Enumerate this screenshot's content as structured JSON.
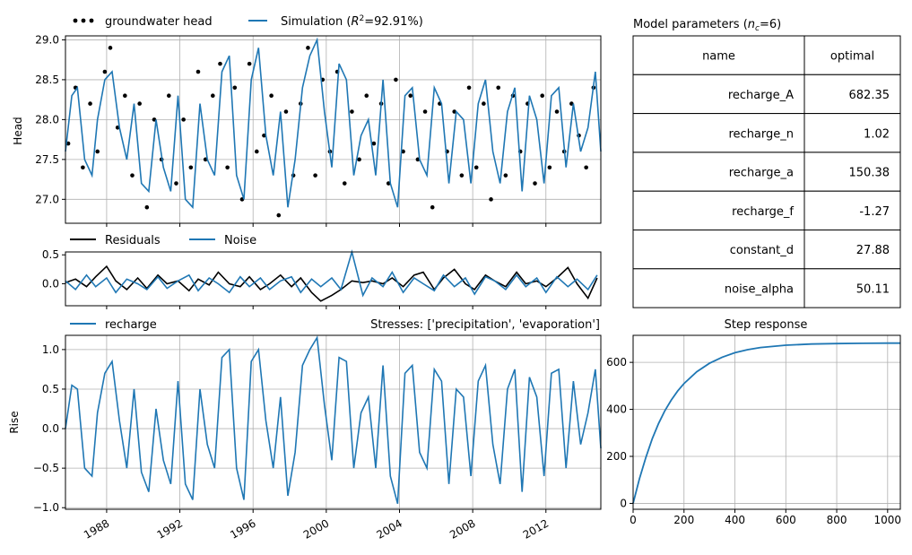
{
  "figure": {
    "head_panel": {
      "legend": {
        "observed_label": "groundwater head",
        "simulated_prefix": "Simulation (",
        "simulated_r2": "R",
        "simulated_sup": "2",
        "simulated_suffix": "=92.91%)"
      },
      "ylabel": "Head"
    },
    "residual_panel": {
      "legend": {
        "residuals_label": "Residuals",
        "noise_label": "Noise"
      }
    },
    "recharge_panel": {
      "legend": {
        "recharge_label": "recharge"
      },
      "stresses_title": "Stresses: ['precipitation', 'evaporation']",
      "ylabel": "Rise"
    },
    "parameter_table": {
      "title_prefix": "Model parameters (",
      "title_n": "n",
      "title_sub": "c",
      "title_suffix": "=6)",
      "columns": [
        "name",
        "optimal"
      ],
      "rows": [
        {
          "name": "recharge_A",
          "optimal": "682.35"
        },
        {
          "name": "recharge_n",
          "optimal": "1.02"
        },
        {
          "name": "recharge_a",
          "optimal": "150.38"
        },
        {
          "name": "recharge_f",
          "optimal": "-1.27"
        },
        {
          "name": "constant_d",
          "optimal": "27.88"
        },
        {
          "name": "noise_alpha",
          "optimal": "50.11"
        }
      ]
    },
    "step_panel": {
      "title": "Step response"
    }
  },
  "colors": {
    "simulation": "#1f77b4",
    "observed": "#000000",
    "grid": "#b0b0b0"
  },
  "chart_data": [
    {
      "id": "head",
      "type": "line",
      "xlim": [
        1985.75,
        2015.0
      ],
      "ylim": [
        26.7,
        29.05
      ],
      "yticks": [
        27.0,
        27.5,
        28.0,
        28.5,
        29.0
      ],
      "ytick_labels": [
        "27.0",
        "27.5",
        "28.0",
        "28.5",
        "29.0"
      ],
      "xticks": [
        1988,
        1992,
        1996,
        2000,
        2004,
        2008,
        2012
      ],
      "grid": true,
      "series": [
        {
          "name": "groundwater head",
          "style": "scatter",
          "color": "#000000",
          "x": [
            1985.9,
            1986.3,
            1986.7,
            1987.1,
            1987.5,
            1987.9,
            1988.2,
            1988.6,
            1989.0,
            1989.4,
            1989.8,
            1990.2,
            1990.6,
            1991.0,
            1991.4,
            1991.8,
            1992.2,
            1992.6,
            1993.0,
            1993.4,
            1993.8,
            1994.2,
            1994.6,
            1995.0,
            1995.4,
            1995.8,
            1996.2,
            1996.6,
            1997.0,
            1997.4,
            1997.8,
            1998.2,
            1998.6,
            1999.0,
            1999.4,
            1999.8,
            2000.2,
            2000.6,
            2001.0,
            2001.4,
            2001.8,
            2002.2,
            2002.6,
            2003.0,
            2003.4,
            2003.8,
            2004.2,
            2004.6,
            2005.0,
            2005.4,
            2005.8,
            2006.2,
            2006.6,
            2007.0,
            2007.4,
            2007.8,
            2008.2,
            2008.6,
            2009.0,
            2009.4,
            2009.8,
            2010.2,
            2010.6,
            2011.0,
            2011.4,
            2011.8,
            2012.2,
            2012.6,
            2013.0,
            2013.4,
            2013.8,
            2014.2,
            2014.6
          ],
          "y": [
            27.7,
            28.4,
            27.4,
            28.2,
            27.6,
            28.6,
            28.9,
            27.9,
            28.3,
            27.3,
            28.2,
            26.9,
            28.0,
            27.5,
            28.3,
            27.2,
            28.0,
            27.4,
            28.6,
            27.5,
            28.3,
            28.7,
            27.4,
            28.4,
            27.0,
            28.7,
            27.6,
            27.8,
            28.3,
            26.8,
            28.1,
            27.3,
            28.2,
            28.9,
            27.3,
            28.5,
            27.6,
            28.6,
            27.2,
            28.1,
            27.5,
            28.3,
            27.7,
            28.2,
            27.2,
            28.5,
            27.6,
            28.3,
            27.5,
            28.1,
            26.9,
            28.2,
            27.6,
            28.1,
            27.3,
            28.4,
            27.4,
            28.2,
            27.0,
            28.4,
            27.3,
            28.3,
            27.6,
            28.2,
            27.2,
            28.3,
            27.4,
            28.1,
            27.6,
            28.2,
            27.8,
            27.4,
            28.4
          ]
        },
        {
          "name": "Simulation",
          "style": "line",
          "color": "#1f77b4",
          "x": [
            1985.75,
            1986.1,
            1986.4,
            1986.8,
            1987.2,
            1987.5,
            1987.9,
            1988.3,
            1988.7,
            1989.1,
            1989.5,
            1989.9,
            1990.3,
            1990.7,
            1991.1,
            1991.5,
            1991.9,
            1992.3,
            1992.7,
            1993.1,
            1993.5,
            1993.9,
            1994.3,
            1994.7,
            1995.1,
            1995.5,
            1995.9,
            1996.3,
            1996.7,
            1997.1,
            1997.5,
            1997.9,
            1998.3,
            1998.7,
            1999.1,
            1999.5,
            1999.9,
            2000.3,
            2000.7,
            2001.1,
            2001.5,
            2001.9,
            2002.3,
            2002.7,
            2003.1,
            2003.5,
            2003.9,
            2004.3,
            2004.7,
            2005.1,
            2005.5,
            2005.9,
            2006.3,
            2006.7,
            2007.1,
            2007.5,
            2007.9,
            2008.3,
            2008.7,
            2009.1,
            2009.5,
            2009.9,
            2010.3,
            2010.7,
            2011.1,
            2011.5,
            2011.9,
            2012.3,
            2012.7,
            2013.1,
            2013.5,
            2013.9,
            2014.3,
            2014.7,
            2015.0
          ],
          "y": [
            27.6,
            28.3,
            28.4,
            27.5,
            27.3,
            28.0,
            28.5,
            28.6,
            27.9,
            27.5,
            28.2,
            27.2,
            27.1,
            28.0,
            27.4,
            27.1,
            28.3,
            27.0,
            26.9,
            28.2,
            27.5,
            27.3,
            28.6,
            28.8,
            27.3,
            27.0,
            28.5,
            28.9,
            27.8,
            27.3,
            28.1,
            26.9,
            27.5,
            28.4,
            28.8,
            29.0,
            28.1,
            27.4,
            28.7,
            28.5,
            27.3,
            27.8,
            28.0,
            27.3,
            28.5,
            27.2,
            26.9,
            28.3,
            28.4,
            27.5,
            27.3,
            28.4,
            28.2,
            27.2,
            28.1,
            28.0,
            27.2,
            28.2,
            28.5,
            27.6,
            27.2,
            28.1,
            28.4,
            27.1,
            28.3,
            28.0,
            27.2,
            28.3,
            28.4,
            27.4,
            28.2,
            27.6,
            27.9,
            28.6,
            27.6
          ]
        }
      ]
    },
    {
      "id": "residuals",
      "type": "line",
      "xlim": [
        1985.75,
        2015.0
      ],
      "ylim": [
        -0.38,
        0.55
      ],
      "yticks": [
        0.0,
        0.5
      ],
      "ytick_labels": [
        "0.0",
        "0.5"
      ],
      "xticks": [
        1988,
        1992,
        1996,
        2000,
        2004,
        2008,
        2012
      ],
      "grid": false,
      "series": [
        {
          "name": "Residuals",
          "color": "#000000",
          "x": [
            1985.75,
            1986.3,
            1986.9,
            1987.4,
            1988.0,
            1988.5,
            1989.1,
            1989.7,
            1990.2,
            1990.8,
            1991.3,
            1991.9,
            1992.5,
            1993.0,
            1993.6,
            1994.1,
            1994.7,
            1995.3,
            1995.8,
            1996.4,
            1996.9,
            1997.5,
            1998.1,
            1998.6,
            1999.2,
            1999.7,
            2000.3,
            2000.8,
            2001.4,
            2002.0,
            2002.5,
            2003.1,
            2003.6,
            2004.2,
            2004.8,
            2005.3,
            2005.9,
            2006.4,
            2007.0,
            2007.6,
            2008.1,
            2008.7,
            2009.2,
            2009.8,
            2010.4,
            2010.9,
            2011.5,
            2012.0,
            2012.6,
            2013.2,
            2013.7,
            2014.3,
            2014.8
          ],
          "y": [
            0.02,
            0.08,
            -0.05,
            0.12,
            0.3,
            0.05,
            -0.1,
            0.1,
            -0.08,
            0.15,
            0.0,
            0.05,
            -0.12,
            0.08,
            -0.02,
            0.2,
            0.0,
            -0.05,
            0.12,
            -0.1,
            0.0,
            0.15,
            -0.05,
            0.1,
            -0.15,
            -0.3,
            -0.2,
            -0.1,
            0.05,
            0.02,
            0.05,
            0.0,
            0.1,
            -0.05,
            0.15,
            0.2,
            -0.1,
            0.1,
            0.25,
            0.0,
            -0.1,
            0.15,
            0.05,
            -0.05,
            0.2,
            0.0,
            0.05,
            -0.05,
            0.1,
            0.28,
            0.0,
            -0.25,
            0.1
          ]
        },
        {
          "name": "Noise",
          "color": "#1f77b4",
          "x": [
            1985.75,
            1986.3,
            1986.9,
            1987.4,
            1988.0,
            1988.5,
            1989.1,
            1989.7,
            1990.2,
            1990.8,
            1991.3,
            1991.9,
            1992.5,
            1993.0,
            1993.6,
            1994.1,
            1994.7,
            1995.3,
            1995.8,
            1996.4,
            1996.9,
            1997.5,
            1998.1,
            1998.6,
            1999.2,
            1999.7,
            2000.3,
            2000.8,
            2001.4,
            2002.0,
            2002.5,
            2003.1,
            2003.6,
            2004.2,
            2004.8,
            2005.3,
            2005.9,
            2006.4,
            2007.0,
            2007.6,
            2008.1,
            2008.7,
            2009.2,
            2009.8,
            2010.4,
            2010.9,
            2011.5,
            2012.0,
            2012.6,
            2013.2,
            2013.7,
            2014.3,
            2014.8
          ],
          "y": [
            0.05,
            -0.1,
            0.15,
            -0.05,
            0.1,
            -0.15,
            0.08,
            0.0,
            -0.1,
            0.12,
            -0.08,
            0.05,
            0.15,
            -0.12,
            0.1,
            0.0,
            -0.15,
            0.12,
            -0.05,
            0.1,
            -0.1,
            0.05,
            0.12,
            -0.15,
            0.08,
            -0.05,
            0.1,
            -0.1,
            0.55,
            -0.2,
            0.1,
            -0.05,
            0.2,
            -0.15,
            0.1,
            0.0,
            -0.12,
            0.15,
            -0.05,
            0.1,
            -0.18,
            0.12,
            0.05,
            -0.1,
            0.15,
            -0.05,
            0.1,
            -0.15,
            0.12,
            -0.05,
            0.08,
            -0.1,
            0.15
          ]
        }
      ]
    },
    {
      "id": "recharge",
      "type": "line",
      "xlim": [
        1985.75,
        2015.0
      ],
      "ylim": [
        -1.02,
        1.18
      ],
      "yticks": [
        -1.0,
        -0.5,
        0.0,
        0.5,
        1.0
      ],
      "ytick_labels": [
        "−1.0",
        "−0.5",
        "0.0",
        "0.5",
        "1.0"
      ],
      "xticks": [
        1988,
        1992,
        1996,
        2000,
        2004,
        2008,
        2012
      ],
      "xtick_labels": [
        "1988",
        "1992",
        "1996",
        "2000",
        "2004",
        "2008",
        "2012"
      ],
      "grid": true,
      "series": [
        {
          "name": "recharge",
          "color": "#1f77b4",
          "x": [
            1985.75,
            1986.1,
            1986.4,
            1986.8,
            1987.2,
            1987.5,
            1987.9,
            1988.3,
            1988.7,
            1989.1,
            1989.5,
            1989.9,
            1990.3,
            1990.7,
            1991.1,
            1991.5,
            1991.9,
            1992.3,
            1992.7,
            1993.1,
            1993.5,
            1993.9,
            1994.3,
            1994.7,
            1995.1,
            1995.5,
            1995.9,
            1996.3,
            1996.7,
            1997.1,
            1997.5,
            1997.9,
            1998.3,
            1998.7,
            1999.1,
            1999.5,
            1999.9,
            2000.3,
            2000.7,
            2001.1,
            2001.5,
            2001.9,
            2002.3,
            2002.7,
            2003.1,
            2003.5,
            2003.9,
            2004.3,
            2004.7,
            2005.1,
            2005.5,
            2005.9,
            2006.3,
            2006.7,
            2007.1,
            2007.5,
            2007.9,
            2008.3,
            2008.7,
            2009.1,
            2009.5,
            2009.9,
            2010.3,
            2010.7,
            2011.1,
            2011.5,
            2011.9,
            2012.3,
            2012.7,
            2013.1,
            2013.5,
            2013.9,
            2014.3,
            2014.7,
            2015.0
          ],
          "y": [
            0.0,
            0.55,
            0.5,
            -0.5,
            -0.6,
            0.2,
            0.7,
            0.85,
            0.1,
            -0.5,
            0.5,
            -0.55,
            -0.8,
            0.25,
            -0.4,
            -0.7,
            0.6,
            -0.7,
            -0.9,
            0.5,
            -0.2,
            -0.5,
            0.9,
            1.0,
            -0.5,
            -0.9,
            0.85,
            1.0,
            0.1,
            -0.5,
            0.4,
            -0.85,
            -0.3,
            0.8,
            1.0,
            1.15,
            0.3,
            -0.4,
            0.9,
            0.85,
            -0.5,
            0.2,
            0.4,
            -0.5,
            0.8,
            -0.6,
            -0.95,
            0.7,
            0.8,
            -0.3,
            -0.5,
            0.75,
            0.6,
            -0.7,
            0.5,
            0.4,
            -0.6,
            0.6,
            0.8,
            -0.2,
            -0.7,
            0.5,
            0.75,
            -0.8,
            0.65,
            0.4,
            -0.6,
            0.7,
            0.75,
            -0.5,
            0.6,
            -0.2,
            0.2,
            0.75,
            -0.25
          ]
        }
      ]
    },
    {
      "id": "step_response",
      "type": "line",
      "xlim": [
        0,
        1050
      ],
      "ylim": [
        -25,
        715
      ],
      "yticks": [
        0,
        200,
        400,
        600
      ],
      "ytick_labels": [
        "0",
        "200",
        "400",
        "600"
      ],
      "xticks": [
        0,
        200,
        400,
        600,
        800,
        1000
      ],
      "xtick_labels": [
        "0",
        "200",
        "400",
        "600",
        "800",
        "1000"
      ],
      "grid": true,
      "series": [
        {
          "name": "step",
          "color": "#1f77b4",
          "x": [
            0,
            25,
            50,
            75,
            100,
            125,
            150,
            175,
            200,
            250,
            300,
            350,
            400,
            450,
            500,
            600,
            700,
            800,
            900,
            1000,
            1050
          ],
          "y": [
            0,
            105,
            195,
            275,
            340,
            395,
            440,
            478,
            510,
            560,
            596,
            622,
            641,
            654,
            663,
            673,
            678,
            680,
            681,
            682,
            682
          ]
        }
      ]
    }
  ]
}
